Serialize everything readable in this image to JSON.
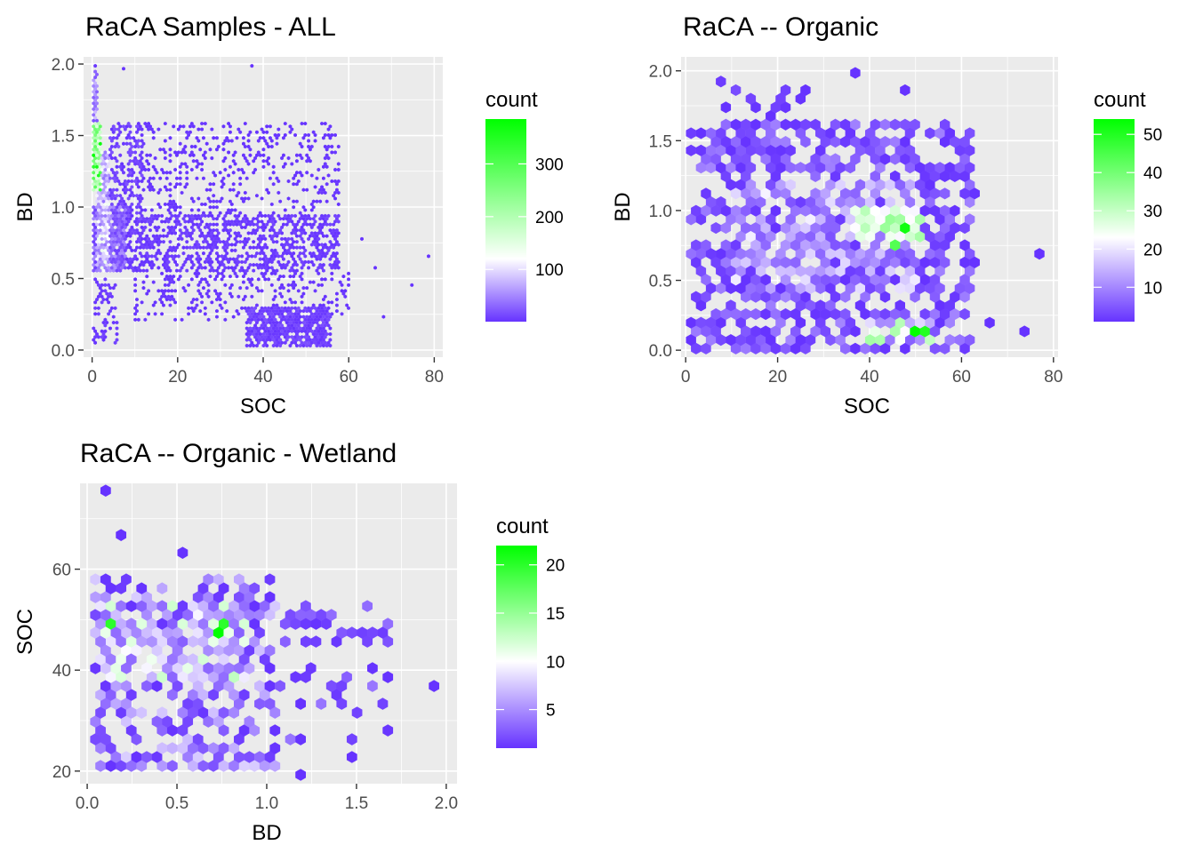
{
  "colors": {
    "low": "#6633ff",
    "mid": "#ffffff",
    "high": "#00ff00",
    "panel_bg": "#ebebeb",
    "grid": "#ffffff"
  },
  "chart_data": [
    {
      "type": "hexbin",
      "title": "RaCA Samples - ALL",
      "xlabel": "SOC",
      "ylabel": "BD",
      "xlim": [
        -2,
        82
      ],
      "ylim": [
        -0.05,
        2.05
      ],
      "x_ticks": [
        0,
        20,
        40,
        60,
        80
      ],
      "x_tick_labels": [
        "0",
        "20",
        "40",
        "60",
        "80"
      ],
      "y_ticks": [
        0.0,
        0.5,
        1.0,
        1.5,
        2.0
      ],
      "y_tick_labels": [
        "0.0",
        "0.5",
        "1.0",
        "1.5",
        "2.0"
      ],
      "grid": true,
      "legend": {
        "title": "count",
        "range": [
          1,
          385
        ],
        "mid": 120,
        "ticks": [
          100,
          200,
          300
        ],
        "tick_labels": [
          "100",
          "200",
          "300"
        ],
        "placement": "right"
      },
      "hex_radius": 0.45,
      "seed": 11,
      "regions": [
        {
          "x": [
            0,
            2
          ],
          "y": [
            1.1,
            1.6
          ],
          "density": 1.0,
          "weights": [
            150,
            385
          ]
        },
        {
          "x": [
            0,
            1.5
          ],
          "y": [
            1.6,
            1.95
          ],
          "density": 0.9,
          "weights": [
            20,
            90
          ]
        },
        {
          "x": [
            1,
            4
          ],
          "y": [
            0.55,
            1.4
          ],
          "density": 1.0,
          "weights": [
            40,
            140
          ]
        },
        {
          "x": [
            0,
            8
          ],
          "y": [
            0.55,
            1.0
          ],
          "density": 0.95,
          "weights": [
            8,
            60
          ]
        },
        {
          "x": [
            4,
            12
          ],
          "y": [
            0.9,
            1.6
          ],
          "density": 0.45,
          "weights": [
            2,
            20
          ]
        },
        {
          "x": [
            8,
            58
          ],
          "y": [
            0.55,
            0.95
          ],
          "density": 0.55,
          "weights": [
            1,
            12
          ]
        },
        {
          "x": [
            10,
            58
          ],
          "y": [
            0.95,
            1.6
          ],
          "density": 0.2,
          "weights": [
            1,
            5
          ]
        },
        {
          "x": [
            10,
            60
          ],
          "y": [
            0.2,
            0.55
          ],
          "density": 0.22,
          "weights": [
            1,
            6
          ]
        },
        {
          "x": [
            36,
            56
          ],
          "y": [
            0.02,
            0.3
          ],
          "density": 0.85,
          "weights": [
            2,
            18
          ]
        },
        {
          "x": [
            0,
            6
          ],
          "y": [
            0.05,
            0.5
          ],
          "density": 0.35,
          "weights": [
            1,
            10
          ]
        }
      ],
      "points": [
        [
          0.5,
          1.98,
          4
        ],
        [
          7.5,
          1.96,
          2
        ],
        [
          37,
          1.98,
          1
        ],
        [
          79,
          0.65,
          1
        ],
        [
          75,
          0.45,
          1
        ],
        [
          68,
          0.24,
          1
        ],
        [
          63,
          0.78,
          1
        ],
        [
          66,
          0.58,
          1
        ],
        [
          2.5,
          0.1,
          12
        ]
      ]
    },
    {
      "type": "hexbin",
      "title": "RaCA -- Organic",
      "xlabel": "SOC",
      "ylabel": "BD",
      "xlim": [
        -1,
        81
      ],
      "ylim": [
        -0.05,
        2.1
      ],
      "x_ticks": [
        0,
        20,
        40,
        60,
        80
      ],
      "x_tick_labels": [
        "0",
        "20",
        "40",
        "60",
        "80"
      ],
      "y_ticks": [
        0.0,
        0.5,
        1.0,
        1.5,
        2.0
      ],
      "y_tick_labels": [
        "0.0",
        "0.5",
        "1.0",
        "1.5",
        "2.0"
      ],
      "grid": true,
      "legend": {
        "title": "count",
        "range": [
          1,
          54
        ],
        "mid": 23,
        "ticks": [
          10,
          20,
          30,
          40,
          50
        ],
        "tick_labels": [
          "10",
          "20",
          "30",
          "40",
          "50"
        ],
        "placement": "right"
      },
      "hex_radius": 1.25,
      "seed": 23,
      "regions": [
        {
          "x": [
            1,
            62
          ],
          "y": [
            0.0,
            1.65
          ],
          "density": 0.62,
          "weights": [
            1,
            10
          ]
        },
        {
          "x": [
            10,
            50
          ],
          "y": [
            0.4,
            1.2
          ],
          "density": 0.55,
          "weights": [
            6,
            22
          ]
        },
        {
          "x": [
            36,
            52
          ],
          "y": [
            0.8,
            1.0
          ],
          "density": 0.9,
          "weights": [
            22,
            36
          ]
        },
        {
          "x": [
            40,
            54
          ],
          "y": [
            0.05,
            0.25
          ],
          "density": 0.9,
          "weights": [
            10,
            34
          ]
        },
        {
          "x": [
            6,
            30
          ],
          "y": [
            1.6,
            1.9
          ],
          "density": 0.2,
          "weights": [
            1,
            4
          ]
        }
      ],
      "points": [
        [
          48,
          0.85,
          52
        ],
        [
          46.5,
          0.75,
          44
        ],
        [
          50,
          0.12,
          54
        ],
        [
          52.5,
          0.12,
          50
        ],
        [
          37,
          2.0,
          1
        ],
        [
          47,
          1.86,
          1
        ],
        [
          8,
          1.95,
          2
        ],
        [
          63.5,
          1.15,
          1
        ],
        [
          77.5,
          0.67,
          1
        ],
        [
          74.5,
          0.13,
          1
        ],
        [
          67,
          0.22,
          1
        ],
        [
          63,
          0.62,
          1
        ],
        [
          2,
          0.07,
          1
        ]
      ]
    },
    {
      "type": "hexbin",
      "title": "RaCA -- Organic - Wetland",
      "xlabel": "BD",
      "ylabel": "SOC",
      "xlim": [
        -0.04,
        2.06
      ],
      "ylim": [
        17.5,
        77
      ],
      "x_ticks": [
        0.0,
        0.5,
        1.0,
        1.5,
        2.0
      ],
      "x_tick_labels": [
        "0.0",
        "0.5",
        "1.0",
        "1.5",
        "2.0"
      ],
      "y_ticks": [
        20,
        40,
        60
      ],
      "y_tick_labels": [
        "20",
        "40",
        "60"
      ],
      "grid": true,
      "legend": {
        "title": "count",
        "range": [
          1,
          22
        ],
        "mid": 10,
        "ticks": [
          5,
          10,
          15,
          20
        ],
        "tick_labels": [
          "5",
          "10",
          "15",
          "20"
        ],
        "placement": "right"
      },
      "hex_radius": 0.033,
      "hex_aspect": 28,
      "seed": 37,
      "regions": [
        {
          "x": [
            0.02,
            1.05
          ],
          "y": [
            20,
            58
          ],
          "density": 0.55,
          "weights": [
            1,
            8
          ]
        },
        {
          "x": [
            0.05,
            0.9
          ],
          "y": [
            38,
            53
          ],
          "density": 0.8,
          "weights": [
            3,
            13
          ]
        },
        {
          "x": [
            1.05,
            1.7
          ],
          "y": [
            45,
            54
          ],
          "density": 0.4,
          "weights": [
            1,
            4
          ]
        },
        {
          "x": [
            1.0,
            1.7
          ],
          "y": [
            25,
            42
          ],
          "density": 0.25,
          "weights": [
            1,
            4
          ]
        }
      ],
      "points": [
        [
          0.12,
          75,
          1
        ],
        [
          0.2,
          67,
          1
        ],
        [
          0.55,
          63,
          1
        ],
        [
          0.12,
          50,
          20
        ],
        [
          0.12,
          53,
          12
        ],
        [
          0.77,
          50,
          20
        ],
        [
          0.75,
          47,
          22
        ],
        [
          1.95,
          37,
          1
        ],
        [
          1.2,
          20,
          1
        ],
        [
          1.5,
          23,
          1
        ]
      ]
    }
  ]
}
